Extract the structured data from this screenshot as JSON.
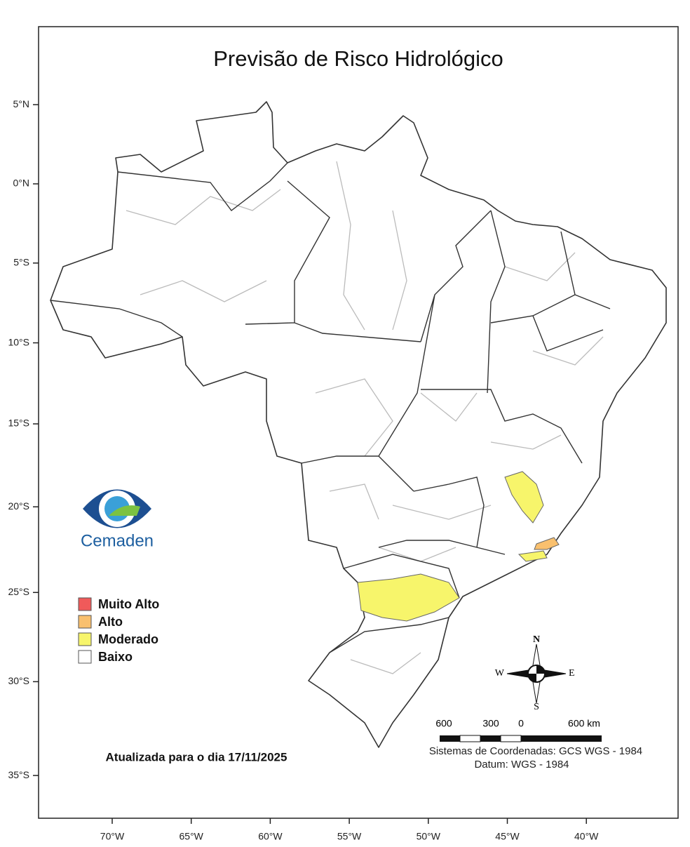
{
  "title": "Previsão de Risco Hidrológico",
  "lat_ticks": [
    {
      "value": 5,
      "label": "5°N"
    },
    {
      "value": 0,
      "label": "0°N"
    },
    {
      "value": -5,
      "label": "5°S"
    },
    {
      "value": -10,
      "label": "10°S"
    },
    {
      "value": -15,
      "label": "15°S"
    },
    {
      "value": -20,
      "label": "20°S"
    },
    {
      "value": -25,
      "label": "25°S"
    },
    {
      "value": -30,
      "label": "30°S"
    },
    {
      "value": -35,
      "label": "35°S"
    }
  ],
  "lon_ticks": [
    {
      "value": -70,
      "label": "70°W"
    },
    {
      "value": -65,
      "label": "65°W"
    },
    {
      "value": -60,
      "label": "60°W"
    },
    {
      "value": -55,
      "label": "55°W"
    },
    {
      "value": -50,
      "label": "50°W"
    },
    {
      "value": -45,
      "label": "45°W"
    },
    {
      "value": -40,
      "label": "40°W"
    }
  ],
  "legend": [
    {
      "name": "Muito Alto",
      "color": "#f05a5a"
    },
    {
      "name": "Alto",
      "color": "#f9c06e"
    },
    {
      "name": "Moderado",
      "color": "#f7f56b"
    },
    {
      "name": "Baixo",
      "color": "#ffffff"
    }
  ],
  "logo": "Cemaden",
  "updated": "Atualizada para o dia 17/11/2025",
  "compass": [
    "N",
    "E",
    "S",
    "W"
  ],
  "scale_labels": [
    "600",
    "300",
    "0",
    "600 km"
  ],
  "coordinate_system": "Sistemas de Coordenadas: GCS WGS - 1984",
  "datum": "Datum: WGS - 1984"
}
